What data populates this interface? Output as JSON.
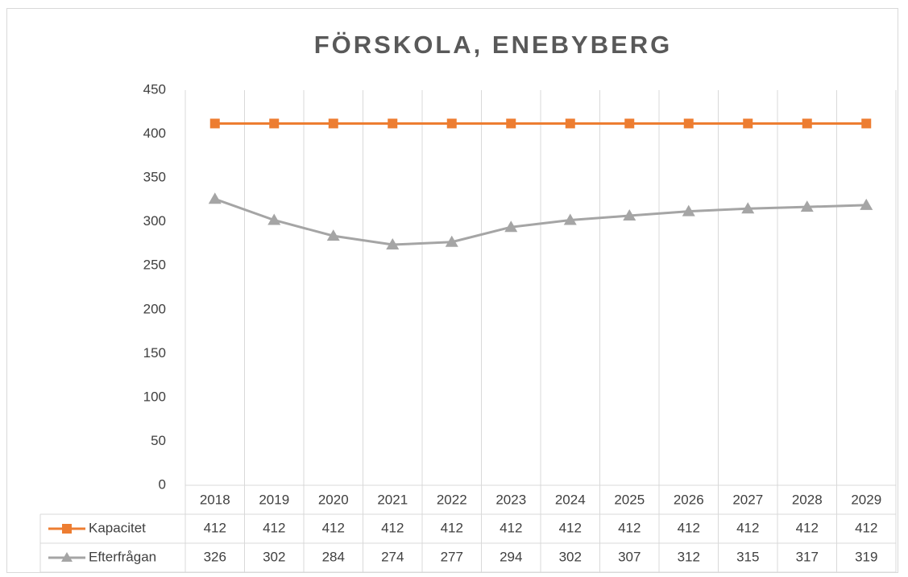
{
  "chart_data": {
    "type": "line",
    "title": "FÖRSKOLA, ENEBYBERG",
    "categories": [
      "2018",
      "2019",
      "2020",
      "2021",
      "2022",
      "2023",
      "2024",
      "2025",
      "2026",
      "2027",
      "2028",
      "2029"
    ],
    "series": [
      {
        "name": "Kapacitet",
        "color": "#ed7d31",
        "marker": "square",
        "values": [
          412,
          412,
          412,
          412,
          412,
          412,
          412,
          412,
          412,
          412,
          412,
          412
        ]
      },
      {
        "name": "Efterfrågan",
        "color": "#a5a5a5",
        "marker": "triangle",
        "values": [
          326,
          302,
          284,
          274,
          277,
          294,
          302,
          307,
          312,
          315,
          317,
          319
        ]
      }
    ],
    "ylim": [
      0,
      450
    ],
    "yticks": [
      0,
      50,
      100,
      150,
      200,
      250,
      300,
      350,
      400,
      450
    ],
    "grid": "vertical",
    "data_table": true
  }
}
